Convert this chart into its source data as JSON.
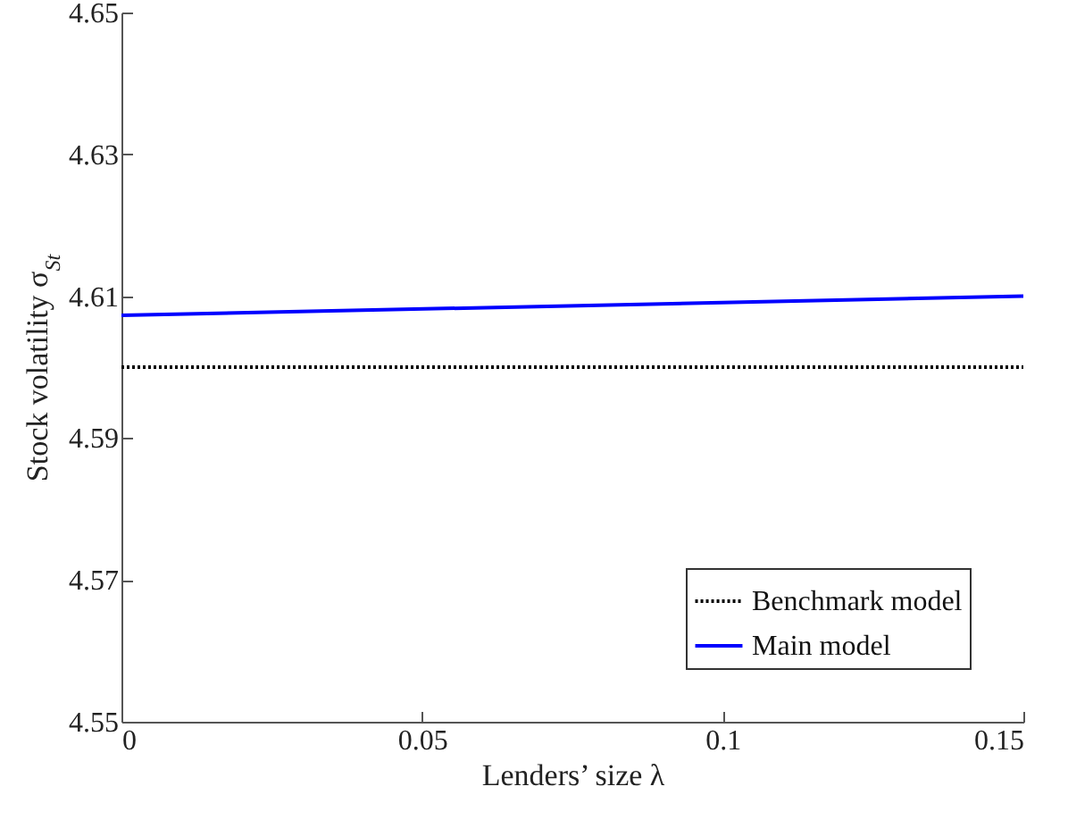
{
  "chart_data": {
    "type": "line",
    "xlabel": "Lenders’ size λ",
    "ylabel": "Stock volatility σ$_{St}$",
    "xlim": [
      0,
      0.15
    ],
    "xticks": [
      0,
      0.05,
      0.1,
      0.15
    ],
    "ylim": [
      4.55,
      4.65
    ],
    "yticks": [
      4.55,
      4.57,
      4.59,
      4.61,
      4.63,
      4.65
    ],
    "grid": false,
    "legend": "bottom right",
    "marker": "none",
    "x": [
      0,
      0.15
    ],
    "series": [
      {
        "name": "Benchmark model",
        "color": "#000000",
        "line_style": "dotted",
        "values": [
          4.6,
          4.6
        ]
      },
      {
        "name": "Main model",
        "color": "#0000ff",
        "line_style": "solid",
        "values": [
          4.6073,
          4.61
        ]
      }
    ]
  }
}
